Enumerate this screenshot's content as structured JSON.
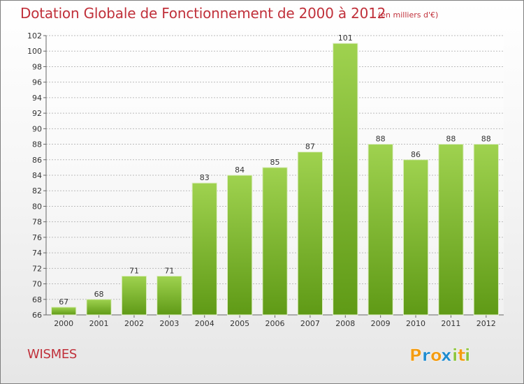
{
  "chart_data": {
    "type": "bar",
    "title": "Dotation Globale de Fonctionnement de 2000 à 2012",
    "subtitle": "(en milliers d'€)",
    "categories": [
      "2000",
      "2001",
      "2002",
      "2003",
      "2004",
      "2005",
      "2006",
      "2007",
      "2008",
      "2009",
      "2010",
      "2011",
      "2012"
    ],
    "values": [
      67,
      68,
      71,
      71,
      83,
      84,
      85,
      87,
      101,
      88,
      86,
      88,
      88
    ],
    "ylim": [
      66,
      102
    ],
    "yticks": [
      66,
      68,
      70,
      72,
      74,
      76,
      78,
      80,
      82,
      84,
      86,
      88,
      90,
      92,
      94,
      96,
      98,
      100,
      102
    ],
    "grid": true,
    "bar_color": "#8cc43c"
  },
  "location": "WISMES",
  "brand": {
    "letters": [
      "P",
      "r",
      "o",
      "x",
      "i",
      "t",
      "i"
    ],
    "colors": [
      "#f39c12",
      "#1f8ccf",
      "#f39c12",
      "#1f8ccf",
      "#8cc43c",
      "#f39c12",
      "#8cc43c"
    ]
  }
}
